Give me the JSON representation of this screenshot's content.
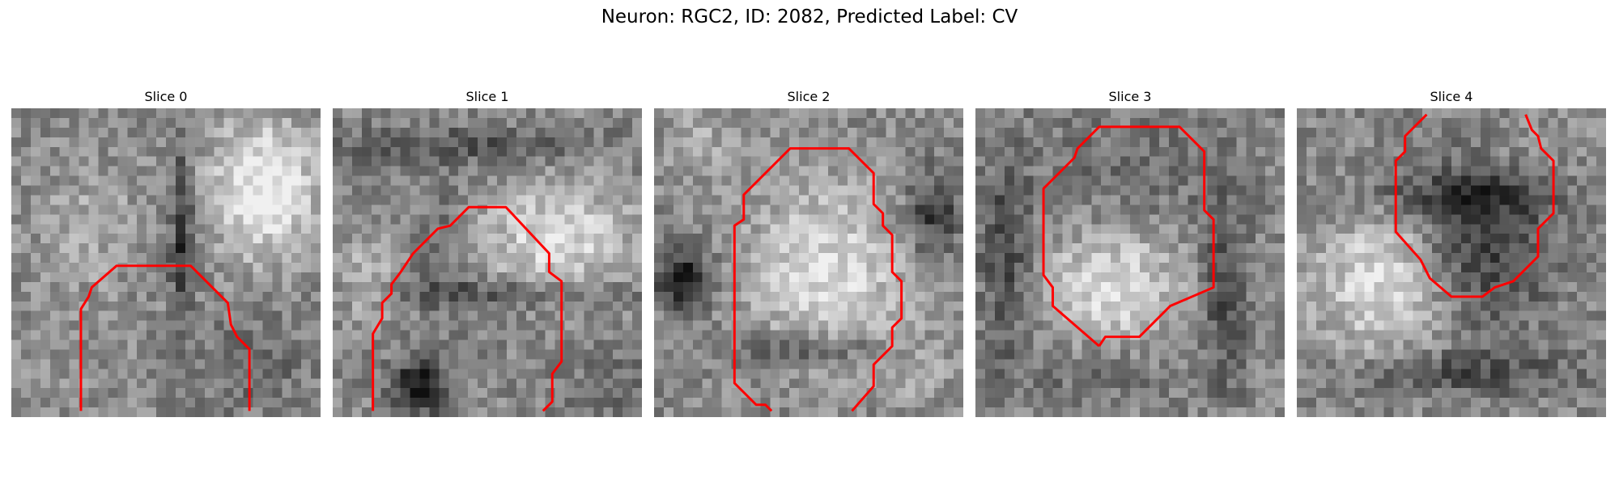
{
  "figure": {
    "title": "Neuron: RGC2, ID: 2082, Predicted Label: CV",
    "contour_color": "#ff0000",
    "colormap": "gray"
  },
  "panels": [
    {
      "title": "Slice 0"
    },
    {
      "title": "Slice 1"
    },
    {
      "title": "Slice 2"
    },
    {
      "title": "Slice 3"
    },
    {
      "title": "Slice 4"
    }
  ]
}
